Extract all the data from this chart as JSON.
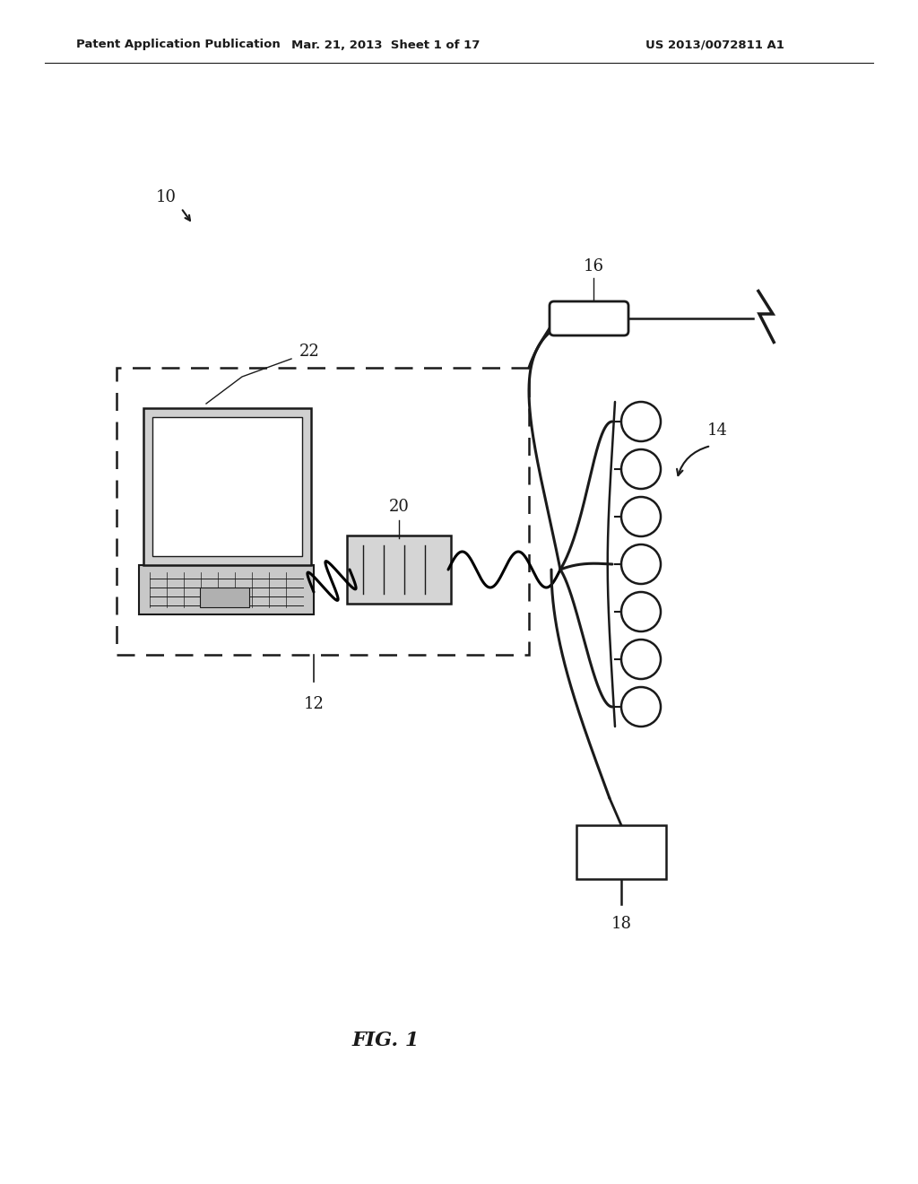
{
  "title_left": "Patent Application Publication",
  "title_center": "Mar. 21, 2013  Sheet 1 of 17",
  "title_right": "US 2013/0072811 A1",
  "fig_label": "FIG. 1",
  "label_10": "10",
  "label_12": "12",
  "label_14": "14",
  "label_16": "16",
  "label_18": "18",
  "label_20": "20",
  "label_22": "22",
  "bg_color": "#ffffff",
  "line_color": "#1a1a1a"
}
